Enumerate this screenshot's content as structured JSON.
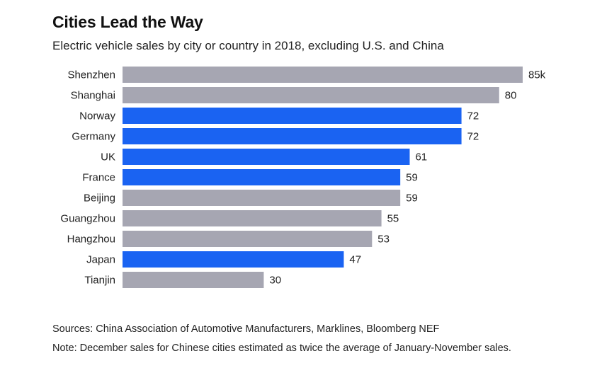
{
  "title": "Cities Lead the Way",
  "subtitle": "Electric vehicle sales by city or country in 2018, excluding U.S. and China",
  "sources": "Sources: China Association of Automotive Manufacturers, Marklines, Bloomberg NEF",
  "note": "Note: December sales for Chinese cities estimated as twice the average of January-November sales.",
  "colors": {
    "city": "#a6a6b2",
    "country": "#1a63f2"
  },
  "chart_data": {
    "type": "bar",
    "orientation": "horizontal",
    "title": "Cities Lead the Way",
    "subtitle": "Electric vehicle sales by city or country in 2018, excluding U.S. and China",
    "xlabel": "",
    "ylabel": "",
    "xlim": [
      0,
      85
    ],
    "grid": false,
    "categories": [
      "Shenzhen",
      "Shanghai",
      "Norway",
      "Germany",
      "UK",
      "France",
      "Beijing",
      "Guangzhou",
      "Hangzhou",
      "Japan",
      "Tianjin"
    ],
    "values": [
      85,
      80,
      72,
      72,
      61,
      59,
      59,
      55,
      53,
      47,
      30
    ],
    "value_labels": [
      "85k",
      "80",
      "72",
      "72",
      "61",
      "59",
      "59",
      "55",
      "53",
      "47",
      "30"
    ],
    "kinds": [
      "city",
      "city",
      "country",
      "country",
      "country",
      "country",
      "city",
      "city",
      "city",
      "country",
      "city"
    ]
  }
}
